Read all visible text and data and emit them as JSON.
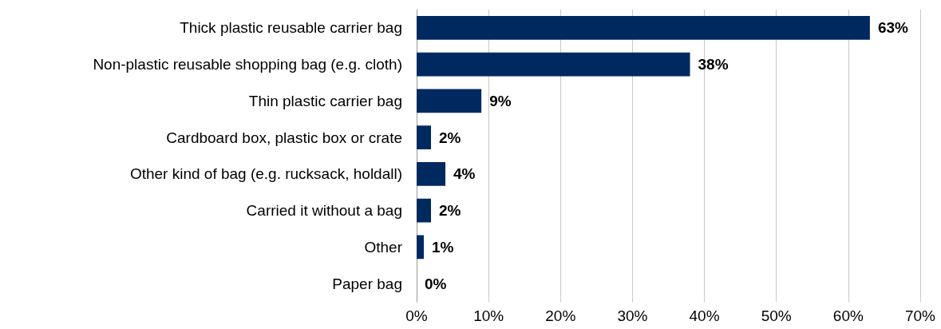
{
  "chart_data": {
    "type": "bar",
    "orientation": "horizontal",
    "categories": [
      "Thick plastic reusable carrier bag",
      "Non-plastic reusable shopping bag (e.g. cloth)",
      "Thin plastic carrier bag",
      "Cardboard box, plastic box or crate",
      "Other kind of bag (e.g. rucksack, holdall)",
      "Carried it without a bag",
      "Other",
      "Paper bag"
    ],
    "values": [
      63,
      38,
      9,
      2,
      4,
      2,
      1,
      0
    ],
    "value_labels": [
      "63%",
      "38%",
      "9%",
      "2%",
      "4%",
      "2%",
      "1%",
      "0%"
    ],
    "color": "#002960",
    "xlim": [
      0,
      70
    ],
    "xticks": [
      {
        "value": 0,
        "label": "0%"
      },
      {
        "value": 10,
        "label": "10%"
      },
      {
        "value": 20,
        "label": "20%"
      },
      {
        "value": 30,
        "label": "30%"
      },
      {
        "value": 40,
        "label": "40%"
      },
      {
        "value": 50,
        "label": "50%"
      },
      {
        "value": 60,
        "label": "60%"
      },
      {
        "value": 70,
        "label": "70%"
      }
    ],
    "grid": "x"
  }
}
